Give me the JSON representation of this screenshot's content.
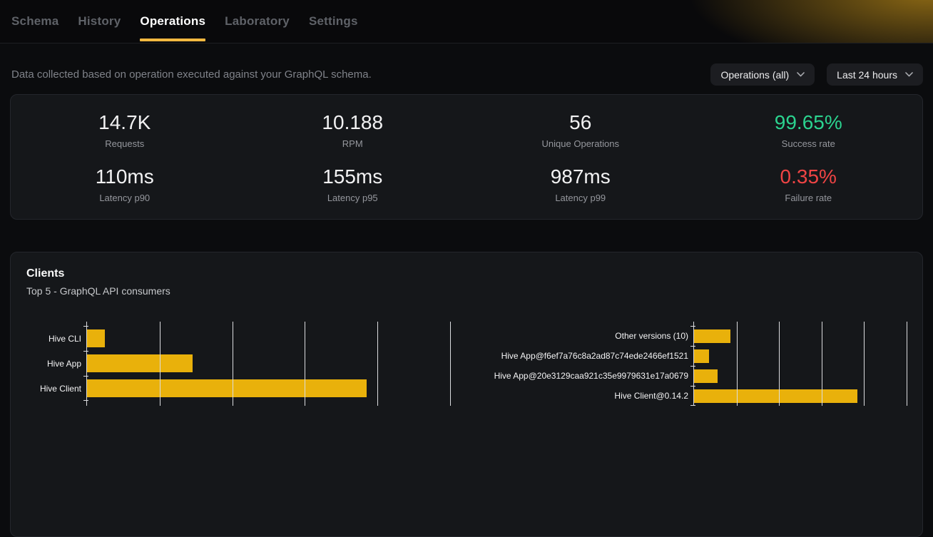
{
  "nav": {
    "tabs": [
      {
        "label": "Schema",
        "active": false
      },
      {
        "label": "History",
        "active": false
      },
      {
        "label": "Operations",
        "active": true
      },
      {
        "label": "Laboratory",
        "active": false
      },
      {
        "label": "Settings",
        "active": false
      }
    ]
  },
  "toolbar": {
    "description": "Data collected based on operation executed against your GraphQL schema.",
    "filters": [
      {
        "label": "Operations (all)"
      },
      {
        "label": "Last 24 hours"
      }
    ]
  },
  "stats": {
    "items": [
      {
        "value": "14.7K",
        "label": "Requests"
      },
      {
        "value": "10.188",
        "label": "RPM"
      },
      {
        "value": "56",
        "label": "Unique Operations"
      },
      {
        "value": "99.65%",
        "label": "Success rate",
        "color": "#2bd38f"
      },
      {
        "value": "110ms",
        "label": "Latency p90"
      },
      {
        "value": "155ms",
        "label": "Latency p95"
      },
      {
        "value": "987ms",
        "label": "Latency p99"
      },
      {
        "value": "0.35%",
        "label": "Failure rate",
        "color": "#ef4444"
      }
    ]
  },
  "clients_card": {
    "title": "Clients",
    "subtitle": "Top 5 - GraphQL API consumers"
  },
  "chart_data": [
    {
      "type": "bar",
      "orientation": "horizontal",
      "title": "Clients",
      "subtitle": "Top 5 - GraphQL API consumers",
      "group": "requests per client",
      "categories": [
        "Hive CLI",
        "Hive App",
        "Hive Client"
      ],
      "values": [
        0.25,
        1.45,
        3.85
      ],
      "xlim": [
        0,
        5.1
      ],
      "gridlines": [
        1,
        2,
        3,
        4,
        5
      ],
      "x_tick_labels_visible": false,
      "legend": "none",
      "bar_color": "#e9b10b",
      "units": "relative gridline units (numeric axis labels not visible; chart cropped at bottom of viewport)"
    },
    {
      "type": "bar",
      "orientation": "horizontal",
      "group": "requests per client version",
      "categories": [
        "Other versions (10)",
        "Hive App@f6ef7a76c8a2ad87c74ede2466ef1521",
        "Hive App@20e3129caa921c35e9979631e17a0679",
        "Hive Client@0.14.2"
      ],
      "values": [
        0.85,
        0.35,
        0.55,
        3.85
      ],
      "xlim": [
        0,
        5.1
      ],
      "gridlines": [
        1,
        2,
        3,
        4,
        5
      ],
      "x_tick_labels_visible": false,
      "legend": "none",
      "bar_color": "#e9b10b",
      "units": "relative gridline units (numeric axis labels not visible; chart cropped at bottom of viewport)"
    }
  ],
  "colors": {
    "accent_yellow": "#e9b10b",
    "tab_underline": "#f2b840",
    "success": "#2bd38f",
    "danger": "#ef4444"
  }
}
